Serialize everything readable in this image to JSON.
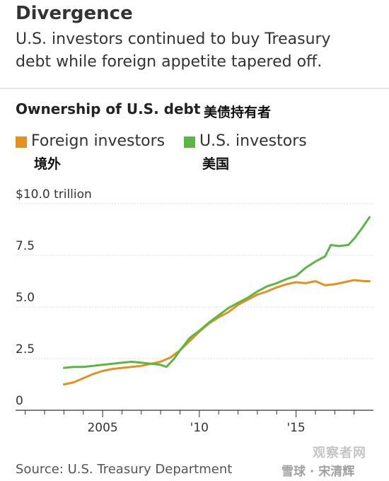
{
  "header": {
    "title": "Divergence",
    "subtitle": "U.S. investors continued to buy Treasury debt while foreign appetite tapered off."
  },
  "chart_header": {
    "title": "Ownership of U.S. debt",
    "title_cn": "美债持有者"
  },
  "legend": [
    {
      "label": "Foreign investors",
      "label_cn": "境外",
      "color": "#e3921f"
    },
    {
      "label": "U.S. investors",
      "label_cn": "美国",
      "color": "#5cb646"
    }
  ],
  "footer": {
    "source": "Source: U.S. Treasury Department",
    "watermark_site": "观察者网",
    "watermark": "雪球 · 宋清辉"
  },
  "chart_data": {
    "type": "line",
    "title": "Ownership of U.S. debt",
    "y_ticks": [
      {
        "value": 0,
        "label": "0"
      },
      {
        "value": 2.5,
        "label": "2.5"
      },
      {
        "value": 5.0,
        "label": "5.0"
      },
      {
        "value": 7.5,
        "label": "7.5"
      },
      {
        "value": 10.0,
        "label": "$10.0 trillion"
      }
    ],
    "x_ticks": [
      {
        "value": 2005,
        "label": "2005"
      },
      {
        "value": 2010,
        "label": "'10"
      },
      {
        "value": 2015,
        "label": "'15"
      }
    ],
    "xlim": [
      2000.5,
      2019.0
    ],
    "ylim": [
      0,
      10
    ],
    "grid": "horizontal",
    "series": [
      {
        "name": "Foreign investors",
        "color": "#e3921f",
        "points": [
          [
            2003.0,
            1.25
          ],
          [
            2003.5,
            1.35
          ],
          [
            2004.0,
            1.55
          ],
          [
            2004.5,
            1.75
          ],
          [
            2005.0,
            1.9
          ],
          [
            2005.5,
            2.0
          ],
          [
            2006.0,
            2.05
          ],
          [
            2006.5,
            2.1
          ],
          [
            2007.0,
            2.15
          ],
          [
            2007.5,
            2.25
          ],
          [
            2008.0,
            2.35
          ],
          [
            2008.5,
            2.55
          ],
          [
            2009.0,
            2.9
          ],
          [
            2009.5,
            3.35
          ],
          [
            2010.0,
            3.8
          ],
          [
            2010.5,
            4.2
          ],
          [
            2011.0,
            4.5
          ],
          [
            2011.5,
            4.75
          ],
          [
            2012.0,
            5.1
          ],
          [
            2012.5,
            5.35
          ],
          [
            2013.0,
            5.6
          ],
          [
            2013.5,
            5.75
          ],
          [
            2014.0,
            5.95
          ],
          [
            2014.5,
            6.1
          ],
          [
            2015.0,
            6.2
          ],
          [
            2015.5,
            6.15
          ],
          [
            2016.0,
            6.25
          ],
          [
            2016.5,
            6.05
          ],
          [
            2017.0,
            6.1
          ],
          [
            2017.5,
            6.2
          ],
          [
            2018.0,
            6.3
          ],
          [
            2018.5,
            6.25
          ],
          [
            2018.8,
            6.25
          ]
        ]
      },
      {
        "name": "U.S. investors",
        "color": "#5cb646",
        "points": [
          [
            2003.0,
            2.05
          ],
          [
            2003.5,
            2.1
          ],
          [
            2004.0,
            2.1
          ],
          [
            2004.5,
            2.15
          ],
          [
            2005.0,
            2.2
          ],
          [
            2005.5,
            2.25
          ],
          [
            2006.0,
            2.3
          ],
          [
            2006.5,
            2.35
          ],
          [
            2007.0,
            2.3
          ],
          [
            2007.5,
            2.25
          ],
          [
            2008.0,
            2.2
          ],
          [
            2008.3,
            2.1
          ],
          [
            2008.7,
            2.5
          ],
          [
            2009.0,
            2.9
          ],
          [
            2009.5,
            3.5
          ],
          [
            2010.0,
            3.85
          ],
          [
            2010.5,
            4.25
          ],
          [
            2011.0,
            4.6
          ],
          [
            2011.5,
            4.95
          ],
          [
            2012.0,
            5.2
          ],
          [
            2012.5,
            5.45
          ],
          [
            2013.0,
            5.75
          ],
          [
            2013.5,
            6.0
          ],
          [
            2014.0,
            6.15
          ],
          [
            2014.5,
            6.35
          ],
          [
            2015.0,
            6.5
          ],
          [
            2015.5,
            6.9
          ],
          [
            2016.0,
            7.2
          ],
          [
            2016.5,
            7.45
          ],
          [
            2016.8,
            8.0
          ],
          [
            2017.2,
            7.95
          ],
          [
            2017.7,
            8.0
          ],
          [
            2018.0,
            8.3
          ],
          [
            2018.4,
            8.8
          ],
          [
            2018.8,
            9.35
          ]
        ]
      }
    ]
  }
}
